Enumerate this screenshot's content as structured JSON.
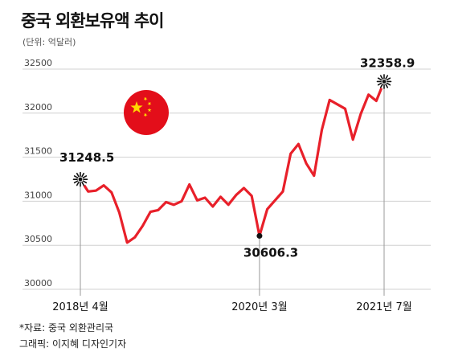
{
  "title": "중국 외환보유액 추이",
  "unit": "(단위: 억달러)",
  "source": "*자료: 중국 외환관리국",
  "credit": "그래픽: 이지혜 디자인기자",
  "colors": {
    "line": "#e8202a",
    "flag_red": "#e30e1a",
    "flag_star": "#ffd800",
    "grid": "#d0d0d0"
  },
  "chart_data": {
    "type": "line",
    "title": "중국 외환보유액 추이",
    "ylabel": "(단위: 억달러)",
    "ylim": [
      30000,
      32500
    ],
    "yticks": [
      30000,
      30500,
      31000,
      31500,
      32000,
      32500
    ],
    "xtick_labels": [
      {
        "index": 0,
        "label": "2018년 4월"
      },
      {
        "index": 23,
        "label": "2020년 3월"
      },
      {
        "index": 39,
        "label": "2021년 7월"
      }
    ],
    "grid": true,
    "values": [
      31248.5,
      31110,
      31120,
      31180,
      31100,
      30870,
      30530,
      30590,
      30720,
      30880,
      30900,
      30990,
      30960,
      31000,
      31190,
      31010,
      31040,
      30940,
      31050,
      30960,
      31070,
      31150,
      31060,
      30606.3,
      30910,
      31010,
      31110,
      31540,
      31650,
      31430,
      31290,
      31810,
      32150,
      32100,
      32050,
      31700,
      31990,
      32210,
      32140,
      32358.9
    ],
    "labeled_points": [
      {
        "index": 0,
        "label": "31248.5"
      },
      {
        "index": 23,
        "label": "30606.3"
      },
      {
        "index": 39,
        "label": "32358.9"
      }
    ],
    "icon": "china-flag-icon"
  }
}
